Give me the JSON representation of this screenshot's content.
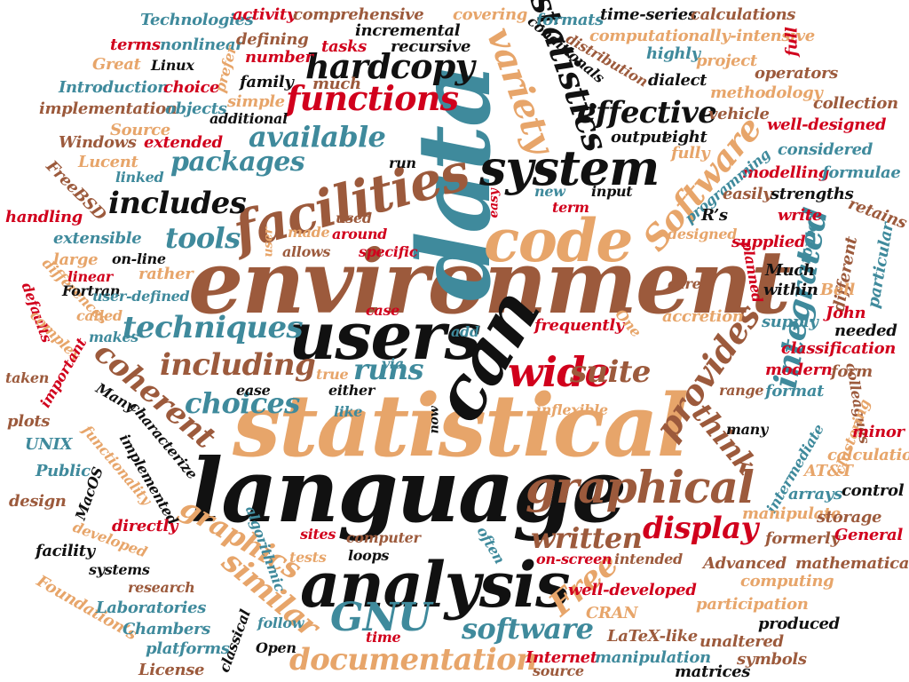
{
  "colors": {
    "brown": "#9c5a3c",
    "tan": "#e7a56a",
    "teal": "#3f8a9c",
    "red": "#d1001c",
    "black": "#111111"
  },
  "words": {
    "environment": "environment",
    "statistical": "statistical",
    "language": "language",
    "data": "data",
    "users": "users",
    "can": "can",
    "analysis": "analysis",
    "code": "code",
    "facilities": "facilities",
    "system": "system",
    "graphical": "graphical",
    "wide": "wide",
    "hardcopy": "hardcopy",
    "functions": "functions",
    "variety": "variety",
    "statistics": "statistics",
    "effective": "effective",
    "software_top": "Software",
    "integrated": "integrated",
    "provides": "provides",
    "think": "think",
    "display": "display",
    "written": "written",
    "documentation": "documentation",
    "software": "software",
    "GNU": "GNU",
    "Free": "Free",
    "similar": "similar",
    "graphics": "graphics",
    "coherent": "coherent",
    "techniques": "techniques",
    "including": "including",
    "choices": "choices",
    "tools": "tools",
    "includes": "includes",
    "packages": "packages",
    "available": "available",
    "runs": "runs",
    "suite": "suite",
    "Technologies": "Technologies",
    "activity": "activity",
    "comprehensive": "comprehensive",
    "covering": "covering",
    "formats": "formats",
    "time_series": "time-series",
    "calculations": "calculations",
    "terms": "terms",
    "nonlinear": "nonlinear",
    "defining": "defining",
    "incremental": "incremental",
    "tasks": "tasks",
    "recursive": "recursive",
    "conditionals": "conditionals",
    "distribution": "distribution",
    "computationally_intensive": "computationally-intensive",
    "full": "full",
    "Great": "Great",
    "Linux": "Linux",
    "number": "number",
    "family": "family",
    "much": "much",
    "highly": "highly",
    "project": "project",
    "dialect": "dialect",
    "operators": "operators",
    "Introduction": "Introduction",
    "choice": "choice",
    "prefer": "prefer",
    "methodology": "methodology",
    "collection": "collection",
    "implementation": "implementation",
    "objects": "objects",
    "simple": "simple",
    "vehicle": "vehicle",
    "additional": "additional",
    "Source": "Source",
    "well_designed": "well-designed",
    "Windows": "Windows",
    "extended": "extended",
    "output": "output",
    "eight": "eight",
    "considered": "considered",
    "Lucent": "Lucent",
    "linked": "linked",
    "run": "run",
    "fully": "fully",
    "modelling": "modelling",
    "formulae": "formulae",
    "FreeBSD": "FreeBSD",
    "easy": "easy",
    "new": "new",
    "input": "input",
    "programming": "programming",
    "easily": "easily",
    "strengths": "strengths",
    "term": "term",
    "handling": "handling",
    "used": "used",
    "Rs": "R’s",
    "write": "write",
    "retains": "retains",
    "extensible": "extensible",
    "user": "user",
    "made": "made",
    "around": "around",
    "designed": "designed",
    "supplied": "supplied",
    "route": "route",
    "large": "large",
    "on_line": "on-line",
    "allows": "allows",
    "specific": "specific",
    "linear": "linear",
    "planned": "planned",
    "different": "different",
    "particular": "particular",
    "differences": "differences",
    "rather": "rather",
    "Much": "Much",
    "Fortran": "Fortran",
    "user_defined": "user-defined",
    "care": "care",
    "within": "within",
    "Bell": "Bell",
    "defaults": "defaults",
    "complex": "complex",
    "case": "case",
    "called": "called",
    "frequently": "frequently",
    "accretion": "accretion",
    "One": "One",
    "John": "John",
    "needed": "needed",
    "makes": "makes",
    "add": "add",
    "supply": "supply",
    "classification": "classification",
    "important": "important",
    "taken": "taken",
    "via": "via",
    "true": "true",
    "modern": "modern",
    "form": "form",
    "either": "either",
    "range": "range",
    "format": "format",
    "colleagues": "colleagues",
    "Many": "Many",
    "ease": "ease",
    "like": "like",
    "now": "now",
    "inflexible": "inflexible",
    "plots": "plots",
    "UNIX": "UNIX",
    "characterize": "characterize",
    "functionality": "functionality",
    "many": "many",
    "clustering": "clustering",
    "minor": "minor",
    "intermediate": "intermediate",
    "ATT": "AT&T",
    "calculation": "calculation",
    "Public": "Public",
    "MacOS": "MacOS",
    "implemented": "implemented",
    "arrays": "arrays",
    "control": "control",
    "design": "design",
    "directly": "directly",
    "manipulate": "manipulate",
    "storage": "storage",
    "developed": "developed",
    "sites": "sites",
    "formerly": "formerly",
    "General": "General",
    "facility": "facility",
    "computer": "computer",
    "often": "often",
    "systems": "systems",
    "tests": "tests",
    "loops": "loops",
    "algorithmic": "algorithmic",
    "on_screen": "on-screen",
    "intended": "intended",
    "Advanced": "Advanced",
    "mathematical": "mathematical",
    "research": "research",
    "computing": "computing",
    "Foundations": "Foundation’s",
    "Laboratories": "Laboratories",
    "well_developed": "well-developed",
    "CRAN": "CRAN",
    "participation": "participation",
    "Chambers": "Chambers",
    "classical": "classical",
    "follow": "follow",
    "produced": "produced",
    "platforms": "platforms",
    "Open": "Open",
    "time": "time",
    "LaTeX_like": "LaTeX-like",
    "unaltered": "unaltered",
    "License": "License",
    "Internet": "Internet",
    "source": "source",
    "manipulation": "manipulation",
    "matrices": "matrices",
    "symbols": "symbols"
  }
}
